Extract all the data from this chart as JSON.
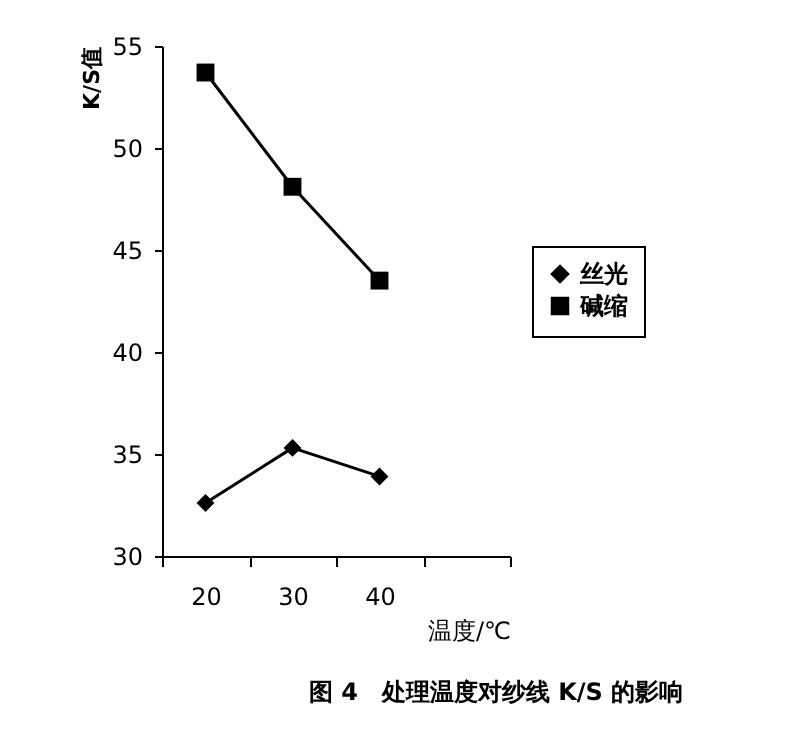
{
  "chart_data": {
    "type": "line",
    "categories": [
      "20",
      "30",
      "40",
      null
    ],
    "series": [
      {
        "name": "丝光",
        "color": "#000000",
        "marker": "diamond",
        "values": [
          32.6,
          35.3,
          33.9,
          null
        ]
      },
      {
        "name": "碱缩",
        "color": "#000000",
        "marker": "square",
        "values": [
          53.7,
          48.1,
          43.5,
          null
        ]
      }
    ],
    "xlabel": "温度/℃",
    "ylabel": "K/S值",
    "ylim": [
      30,
      55
    ],
    "yticks": [
      30,
      35,
      40,
      45,
      50,
      55
    ],
    "grid": false,
    "legend": "right",
    "annotations": [
      "图 4　处理温度对纱线 K/S 的影响"
    ]
  }
}
